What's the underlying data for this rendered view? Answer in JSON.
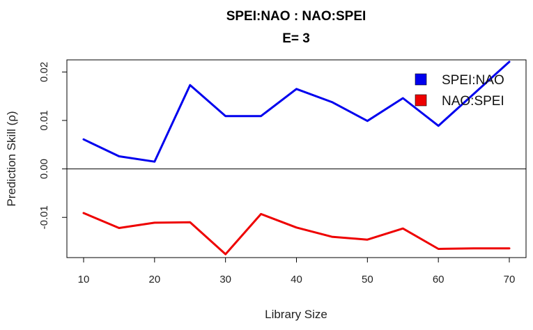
{
  "chart_data": {
    "type": "line",
    "title": "SPEI:NAO  :  NAO:SPEI",
    "subtitle": "E= 3",
    "xlabel": "Library Size",
    "ylabel": "Prediction Skill (ρ)",
    "xlim": [
      10,
      70
    ],
    "ylim": [
      -0.0183,
      0.0225
    ],
    "xticks": [
      10,
      20,
      30,
      40,
      50,
      60,
      70
    ],
    "xtick_labels": [
      "10",
      "20",
      "30",
      "40",
      "50",
      "60",
      "70"
    ],
    "yticks": [
      -0.01,
      0.0,
      0.01,
      0.02
    ],
    "ytick_labels": [
      "-0.01",
      "0.00",
      "0.01",
      "0.02"
    ],
    "reference_line": 0,
    "grid": false,
    "legend": "top-right",
    "x": [
      10,
      15,
      20,
      25,
      30,
      35,
      40,
      45,
      50,
      55,
      60,
      65,
      70
    ],
    "series": [
      {
        "name": "SPEI:NAO",
        "color": "#0000ee",
        "values": [
          0.0061,
          0.0026,
          0.0015,
          0.0173,
          0.0109,
          0.0109,
          0.0165,
          0.0138,
          0.0099,
          0.0146,
          0.0089,
          0.0155,
          0.0221
        ]
      },
      {
        "name": "NAO:SPEI",
        "color": "#ee0000",
        "values": [
          -0.0091,
          -0.0122,
          -0.0111,
          -0.011,
          -0.0176,
          -0.0093,
          -0.0121,
          -0.014,
          -0.0146,
          -0.0123,
          -0.0165,
          -0.0164,
          -0.0164
        ]
      }
    ]
  }
}
